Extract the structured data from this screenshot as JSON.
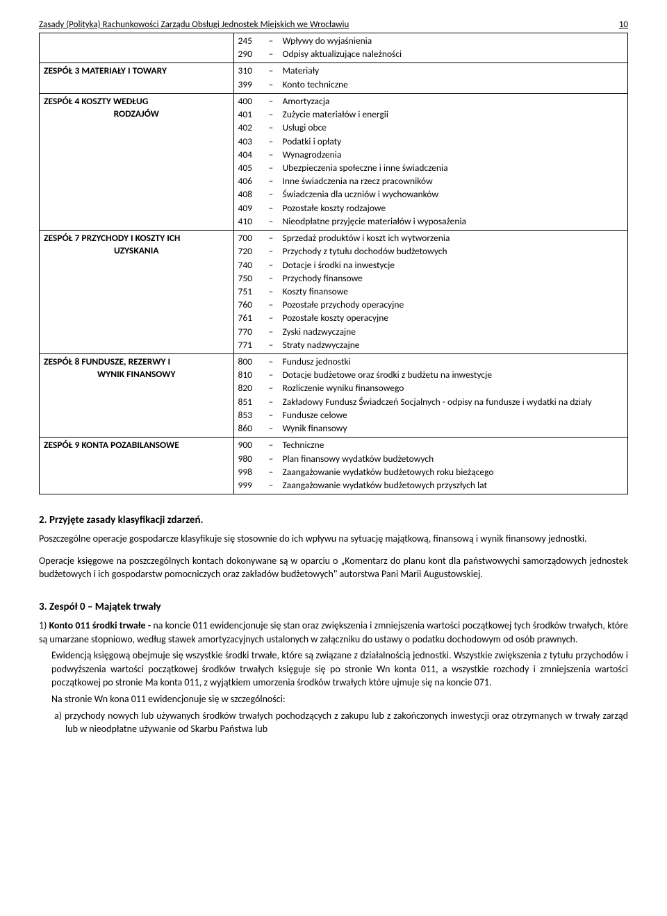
{
  "header": {
    "title": "Zasady (Polityka) Rachunkowości Zarządu Obsługi Jednostek Miejskich we Wrocławiu",
    "page_number": "10"
  },
  "table": [
    {
      "left_html": "",
      "rows": [
        {
          "code": "245",
          "desc": "Wpływy do wyjaśnienia"
        },
        {
          "code": "290",
          "desc": "Odpisy aktualizujące należności"
        }
      ]
    },
    {
      "left_html": "ZESPÓŁ 3 MATERIAŁY I TOWARY",
      "rows": [
        {
          "code": "310",
          "desc": "Materiały"
        },
        {
          "code": "399",
          "desc": "Konto techniczne"
        }
      ]
    },
    {
      "left_html": "ZESPÓŁ 4 KOSZTY WEDŁUG<br><span class='sub'>RODZAJÓW</span>",
      "rows": [
        {
          "code": "400",
          "desc": "Amortyzacja"
        },
        {
          "code": "401",
          "desc": "Zużycie materiałów i energii"
        },
        {
          "code": "402",
          "desc": "Usługi obce"
        },
        {
          "code": "403",
          "desc": "Podatki i opłaty"
        },
        {
          "code": "404",
          "desc": "Wynagrodzenia"
        },
        {
          "code": "405",
          "desc": "Ubezpieczenia społeczne i inne świadczenia"
        },
        {
          "code": "406",
          "desc": "Inne świadczenia na rzecz pracowników"
        },
        {
          "code": "408",
          "desc": "Świadczenia dla uczniów i wychowanków"
        },
        {
          "code": "409",
          "desc": "Pozostałe koszty rodzajowe"
        },
        {
          "code": "410",
          "desc": "Nieodpłatne przyjęcie materiałów i wyposażenia"
        }
      ]
    },
    {
      "left_html": "ZESPÓŁ 7 PRZYCHODY I KOSZTY ICH<br><span class='sub'>UZYSKANIA</span>",
      "rows": [
        {
          "code": "700",
          "desc": "Sprzedaż produktów i koszt ich wytworzenia"
        },
        {
          "code": "720",
          "desc": "Przychody z tytułu dochodów budżetowych"
        },
        {
          "code": "740",
          "desc": "Dotacje i środki na inwestycje"
        },
        {
          "code": "750",
          "desc": "Przychody finansowe"
        },
        {
          "code": "751",
          "desc": "Koszty finansowe"
        },
        {
          "code": "760",
          "desc": "Pozostałe przychody operacyjne"
        },
        {
          "code": "761",
          "desc": "Pozostałe koszty operacyjne"
        },
        {
          "code": "770",
          "desc": "Zyski nadzwyczajne"
        },
        {
          "code": "771",
          "desc": "Straty nadzwyczajne"
        }
      ]
    },
    {
      "left_html": "ZESPÓŁ 8 FUNDUSZE, REZERWY I<br><span class='sub'>WYNIK FINANSOWY</span>",
      "rows": [
        {
          "code": "800",
          "desc": "Fundusz jednostki"
        },
        {
          "code": "810",
          "desc": "Dotacje budżetowe oraz środki z budżetu na inwestycje"
        },
        {
          "code": "820",
          "desc": "Rozliczenie wyniku finansowego"
        },
        {
          "code": "851",
          "desc": "Zakładowy Fundusz Świadczeń Socjalnych - odpisy na fundusze i wydatki na działy"
        },
        {
          "code": "853",
          "desc": "Fundusze celowe"
        },
        {
          "code": "860",
          "desc": "Wynik finansowy"
        }
      ]
    },
    {
      "left_html": "ZESPÓŁ 9 KONTA POZABILANSOWE",
      "rows": [
        {
          "code": "900",
          "desc": "Techniczne"
        },
        {
          "code": "980",
          "desc": "Plan finansowy wydatków budżetowych"
        },
        {
          "code": "998",
          "desc": "Zaangażowanie wydatków budżetowych roku bieżącego"
        },
        {
          "code": "999",
          "desc": "Zaangażowanie wydatków budżetowych przyszłych lat"
        }
      ]
    }
  ],
  "section2_title": "2. Przyjęte zasady klasyfikacji zdarzeń.",
  "section2_p1": "Poszczególne operacje gospodarcze klasyfikuje się stosownie do ich wpływu na sytuację majątkową, finansową i wynik finansowy jednostki.",
  "section2_p2": "Operacje księgowe na poszczególnych kontach dokonywane są w oparciu o „Komentarz do planu kont dla państwowychi samorządowych jednostek budżetowych i ich gospodarstw pomocniczych oraz zakładów budżetowych\" autorstwa Pani  Marii Augustowskiej.",
  "section3_title": "3. Zespół 0 – Majątek trwały",
  "section3_item1_lead": "1) ",
  "section3_item1_bold": "Konto 011 środki trwałe - ",
  "section3_item1_text": "na koncie 011 ewidencjonuje się stan oraz zwiększenia i zmniejszenia wartości początkowej tych środków trwałych, które są umarzane stopniowo, według stawek amortyzacyjnych ustalonych w załączniku do ustawy o podatku dochodowym od osób prawnych.",
  "section3_p2": "Ewidencją  księgową  obejmuje się  wszystkie  środki  trwałe,  które  są  związane  z  działalnością  jednostki. Wszystkie zwiększenia z tytułu przychodów i podwyższenia wartości początkowej środków trwałych księguje   się  po  stronie  Wn  konta 011,  a  wszystkie   rozchody  i  zmniejszenia   wartości  początkowej po stronie Ma   konta 011, z wyjątkiem umorzenia środków trwałych które ujmuje się na koncie 071.",
  "section3_p3": "Na stronie Wn  kona 011  ewidencjonuje się w szczególności:",
  "section3_sub_a": "a) przychody nowych lub używanych środków trwałych pochodzących z zakupu lub z zakończonych inwestycji oraz otrzymanych w trwały zarząd lub w nieodpłatne używanie od Skarbu Państwa lub"
}
